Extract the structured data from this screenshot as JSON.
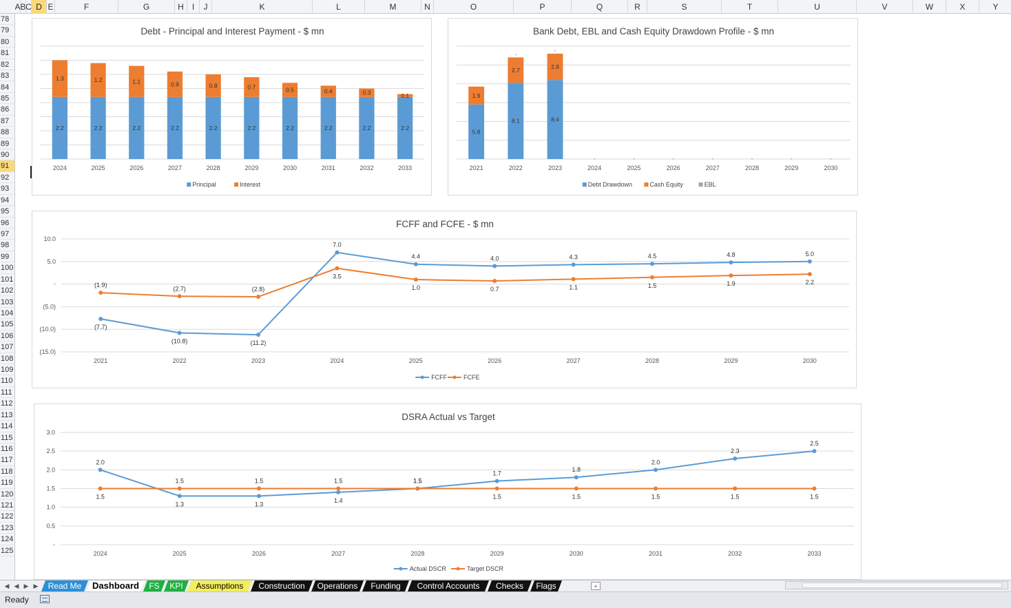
{
  "spreadsheet": {
    "columns": [
      "A",
      "B",
      "C",
      "D",
      "E",
      "F",
      "G",
      "H",
      "I",
      "J",
      "K",
      "L",
      "M",
      "N",
      "O",
      "P",
      "Q",
      "R",
      "S",
      "T",
      "U",
      "V",
      "W",
      "X",
      "Y"
    ],
    "selected_column": "D",
    "rows": [
      "78",
      "79",
      "80",
      "81",
      "82",
      "83",
      "84",
      "85",
      "86",
      "87",
      "88",
      "89",
      "90",
      "91",
      "92",
      "93",
      "94",
      "95",
      "96",
      "97",
      "98",
      "99",
      "100",
      "101",
      "102",
      "103",
      "104",
      "105",
      "106",
      "107",
      "108",
      "109",
      "110",
      "111",
      "112",
      "113",
      "114",
      "115",
      "116",
      "117",
      "118",
      "119",
      "120",
      "121",
      "122",
      "123",
      "124",
      "125"
    ],
    "selected_row": "91"
  },
  "tabs": [
    {
      "label": "Read Me",
      "color": "#2d8fd8"
    },
    {
      "label": "Dashboard",
      "color": "#ffffff"
    },
    {
      "label": "FS",
      "color": "#1fb041"
    },
    {
      "label": "KPI",
      "color": "#1fb041"
    },
    {
      "label": "Assumptions",
      "color": "#f3ef5a"
    },
    {
      "label": "Construction",
      "color": "#111111"
    },
    {
      "label": "Operations",
      "color": "#111111"
    },
    {
      "label": "Funding",
      "color": "#111111"
    },
    {
      "label": "Control Accounts",
      "color": "#111111"
    },
    {
      "label": "Checks",
      "color": "#111111"
    },
    {
      "label": "Flags",
      "color": "#111111"
    }
  ],
  "active_tab": "Dashboard",
  "status": {
    "text": "Ready",
    "icon": "macro-record-icon"
  },
  "colors": {
    "blue": "#5b9bd5",
    "orange": "#ed7d31",
    "gray": "#a5a5a5"
  },
  "chart_data": [
    {
      "type": "bar",
      "title": "Debt - Principal and Interest Payment - $ mn",
      "stacked": true,
      "categories": [
        "2024",
        "2025",
        "2026",
        "2027",
        "2028",
        "2029",
        "2030",
        "2031",
        "2032",
        "2033"
      ],
      "series": [
        {
          "name": "Principal",
          "values": [
            2.2,
            2.2,
            2.2,
            2.2,
            2.2,
            2.2,
            2.2,
            2.2,
            2.2,
            2.2
          ],
          "labels": [
            "2.2",
            "2.2",
            "2.2",
            "2.2",
            "2.2",
            "2.2",
            "2.2",
            "2.2",
            "2.2",
            "2.2"
          ]
        },
        {
          "name": "Interest",
          "values": [
            1.3,
            1.2,
            1.1,
            0.9,
            0.8,
            0.7,
            0.5,
            0.4,
            0.3,
            0.1
          ],
          "labels": [
            "1.3",
            "1.2",
            "1.1",
            "0.9",
            "0.8",
            "0.7",
            "0.5",
            "0.4",
            "0.3",
            "0.1"
          ]
        }
      ],
      "ylim": [
        0,
        4
      ],
      "gridlines": 8,
      "legend": "bottom"
    },
    {
      "type": "bar",
      "title": "Bank Debt, EBL and Cash Equity Drawdown Profile - $ mn",
      "stacked": true,
      "categories": [
        "2021",
        "2022",
        "2023",
        "2024",
        "2025",
        "2026",
        "2027",
        "2028",
        "2029",
        "2030"
      ],
      "series": [
        {
          "name": "Debt Drawdown",
          "values": [
            5.8,
            8.1,
            8.4,
            0,
            0,
            0,
            0,
            0,
            0,
            0
          ],
          "labels": [
            "5.8",
            "8.1",
            "8.4",
            "-",
            "-",
            "-",
            "-",
            "-",
            "-",
            "-"
          ]
        },
        {
          "name": "Cash Equity",
          "values": [
            1.9,
            2.7,
            2.8,
            0,
            0,
            0,
            0,
            0,
            0,
            0
          ],
          "labels": [
            "1.9",
            "2.7",
            "2.8",
            "",
            "",
            "",
            "",
            "",
            "",
            ""
          ]
        },
        {
          "name": "EBL",
          "values": [
            0,
            0,
            0,
            0,
            0,
            0,
            0,
            0,
            0,
            0
          ],
          "labels": [
            "",
            "-",
            "-",
            "",
            "",
            "",
            "",
            "",
            "",
            ""
          ]
        }
      ],
      "ylim": [
        0,
        12
      ],
      "gridlines": 6,
      "legend": "bottom"
    },
    {
      "type": "line",
      "title": "FCFF and FCFE - $ mn",
      "categories": [
        "2021",
        "2022",
        "2023",
        "2024",
        "2025",
        "2026",
        "2027",
        "2028",
        "2029",
        "2030"
      ],
      "yticks": [
        "10.0",
        "5.0",
        "-",
        "(5.0)",
        "(10.0)",
        "(15.0)"
      ],
      "ylim": [
        -15,
        10
      ],
      "series": [
        {
          "name": "FCFF",
          "values": [
            -7.7,
            -10.8,
            -11.2,
            7.0,
            4.4,
            4.0,
            4.3,
            4.5,
            4.8,
            5.0
          ],
          "labels": [
            "(7.7)",
            "(10.8)",
            "(11.2)",
            "7.0",
            "4.4",
            "4.0",
            "4.3",
            "4.5",
            "4.8",
            "5.0"
          ]
        },
        {
          "name": "FCFE",
          "values": [
            -1.9,
            -2.7,
            -2.8,
            3.5,
            1.0,
            0.7,
            1.1,
            1.5,
            1.9,
            2.2
          ],
          "labels": [
            "(1.9)",
            "(2.7)",
            "(2.8)",
            "3.5",
            "1.0",
            "0.7",
            "1.1",
            "1.5",
            "1.9",
            "2.2"
          ]
        }
      ],
      "legend": "bottom"
    },
    {
      "type": "line",
      "title": "DSRA Actual vs Target",
      "categories": [
        "2024",
        "2025",
        "2026",
        "2027",
        "2028",
        "2029",
        "2030",
        "2031",
        "2032",
        "2033"
      ],
      "yticks": [
        "3.0",
        "2.5",
        "2.0",
        "1.5",
        "1.0",
        "0.5",
        "-"
      ],
      "ylim": [
        0,
        3
      ],
      "series": [
        {
          "name": "Actual DSCR",
          "values": [
            2.0,
            1.3,
            1.3,
            1.4,
            1.5,
            1.7,
            1.8,
            2.0,
            2.3,
            2.5
          ],
          "labels": [
            "2.0",
            "1.3",
            "1.3",
            "1.4",
            "1.5",
            "1.7",
            "1.8",
            "2.0",
            "2.3",
            "2.5"
          ]
        },
        {
          "name": "Target DSCR",
          "values": [
            1.5,
            1.5,
            1.5,
            1.5,
            1.5,
            1.5,
            1.5,
            1.5,
            1.5,
            1.5
          ],
          "labels": [
            "1.5",
            "1.5",
            "1.5",
            "1.5",
            "1.5",
            "1.5",
            "1.5",
            "1.5",
            "1.5",
            "1.5"
          ]
        }
      ],
      "legend": "bottom"
    }
  ]
}
